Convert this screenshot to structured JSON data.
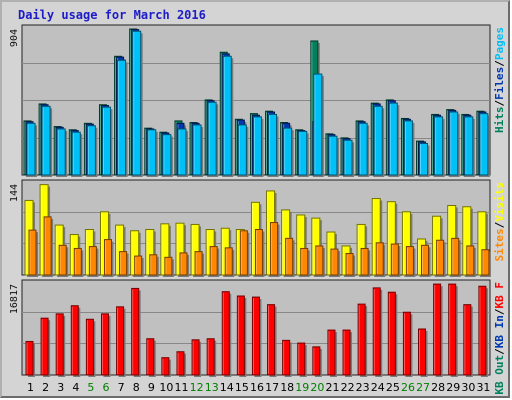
{
  "title": "Daily usage for March 2016",
  "colors": {
    "background": "#d4d4d4",
    "plot_bg": "#c0c0c0",
    "title": "#1c1cc8",
    "hits": "#00805c",
    "files": "#0038b0",
    "pages": "#00c0f8",
    "visits": "#ffff00",
    "sites": "#ff8800",
    "kb_f": "#ff0000",
    "kb_in": "#0038b0",
    "kb_out": "#00805c",
    "weekend_tick": "#008000",
    "weekday_tick": "#000080"
  },
  "chart_data": [
    {
      "type": "bar",
      "panel": "top",
      "ymax_label": "904",
      "ylim": [
        0,
        904
      ],
      "grid": true,
      "legend_parts": [
        {
          "text": "Pages",
          "color": "#00c0f8"
        },
        {
          "text": "/",
          "color": "#000000"
        },
        {
          "text": "Files",
          "color": "#0038b0"
        },
        {
          "text": "/",
          "color": "#000000"
        },
        {
          "text": "Hits",
          "color": "#00805c"
        }
      ],
      "categories": [
        "1",
        "2",
        "3",
        "4",
        "5",
        "6",
        "7",
        "8",
        "9",
        "10",
        "11",
        "12",
        "13",
        "14",
        "15",
        "16",
        "17",
        "18",
        "19",
        "20",
        "21",
        "22",
        "23",
        "24",
        "25",
        "26",
        "27",
        "28",
        "29",
        "30",
        "31"
      ],
      "series": [
        {
          "name": "Hits",
          "values": [
            335,
            440,
            300,
            280,
            320,
            435,
            735,
            904,
            290,
            265,
            335,
            325,
            465,
            760,
            345,
            380,
            395,
            325,
            280,
            830,
            255,
            230,
            335,
            445,
            465,
            350,
            210,
            375,
            405,
            375,
            395
          ]
        },
        {
          "name": "Files",
          "values": [
            330,
            435,
            295,
            275,
            315,
            430,
            730,
            900,
            285,
            260,
            320,
            320,
            460,
            750,
            340,
            370,
            390,
            320,
            275,
            330,
            250,
            225,
            330,
            440,
            460,
            345,
            205,
            370,
            400,
            370,
            390
          ]
        },
        {
          "name": "Pages",
          "values": [
            320,
            425,
            285,
            265,
            305,
            420,
            710,
            890,
            280,
            250,
            285,
            310,
            450,
            735,
            310,
            360,
            375,
            290,
            270,
            625,
            240,
            215,
            320,
            425,
            445,
            335,
            195,
            360,
            390,
            360,
            380
          ]
        }
      ]
    },
    {
      "type": "bar",
      "panel": "middle",
      "ymax_label": "144",
      "ylim": [
        0,
        144
      ],
      "grid": true,
      "legend_parts": [
        {
          "text": "Visits",
          "color": "#ffff00"
        },
        {
          "text": "/",
          "color": "#000000"
        },
        {
          "text": "Sites",
          "color": "#ff8800"
        }
      ],
      "categories": [
        "1",
        "2",
        "3",
        "4",
        "5",
        "6",
        "7",
        "8",
        "9",
        "10",
        "11",
        "12",
        "13",
        "14",
        "15",
        "16",
        "17",
        "18",
        "19",
        "20",
        "21",
        "22",
        "23",
        "24",
        "25",
        "26",
        "27",
        "28",
        "29",
        "30",
        "31"
      ],
      "series": [
        {
          "name": "Visits",
          "values": [
            118,
            143,
            79,
            64,
            72,
            100,
            79,
            70,
            72,
            81,
            82,
            80,
            72,
            74,
            72,
            115,
            133,
            103,
            95,
            90,
            68,
            46,
            80,
            121,
            116,
            100,
            57,
            93,
            110,
            108,
            100
          ]
        },
        {
          "name": "Sites",
          "values": [
            71,
            92,
            47,
            42,
            45,
            56,
            37,
            30,
            32,
            28,
            35,
            37,
            45,
            43,
            70,
            72,
            83,
            58,
            42,
            46,
            41,
            34,
            42,
            51,
            49,
            45,
            47,
            55,
            58,
            46,
            40
          ]
        }
      ]
    },
    {
      "type": "bar",
      "panel": "bottom",
      "ymax_label": "16817",
      "ylim": [
        0,
        16817
      ],
      "grid": true,
      "legend_parts": [
        {
          "text": "KB F",
          "color": "#ff0000"
        },
        {
          "text": "/",
          "color": "#000000"
        },
        {
          "text": "KB In",
          "color": "#0038b0"
        },
        {
          "text": "/",
          "color": "#000000"
        },
        {
          "text": "KB Out",
          "color": "#00805c"
        }
      ],
      "categories": [
        "1",
        "2",
        "3",
        "4",
        "5",
        "6",
        "7",
        "8",
        "9",
        "10",
        "11",
        "12",
        "13",
        "14",
        "15",
        "16",
        "17",
        "18",
        "19",
        "20",
        "21",
        "22",
        "23",
        "24",
        "25",
        "26",
        "27",
        "28",
        "29",
        "30",
        "31"
      ],
      "series": [
        {
          "name": "KB F",
          "values": [
            6200,
            10500,
            11300,
            12800,
            10300,
            11300,
            12600,
            16000,
            6700,
            3200,
            4300,
            6500,
            6700,
            15400,
            14600,
            14400,
            13000,
            6400,
            5900,
            5200,
            8300,
            8300,
            13100,
            16100,
            15300,
            11600,
            8500,
            16800,
            16800,
            13000,
            16400
          ]
        }
      ]
    }
  ],
  "x_axis": {
    "labels": [
      "1",
      "2",
      "3",
      "4",
      "5",
      "6",
      "7",
      "8",
      "9",
      "10",
      "11",
      "12",
      "13",
      "14",
      "15",
      "16",
      "17",
      "18",
      "19",
      "20",
      "21",
      "22",
      "23",
      "24",
      "25",
      "26",
      "27",
      "28",
      "29",
      "30",
      "31"
    ],
    "weekend_days": [
      5,
      6,
      12,
      13,
      19,
      20,
      26,
      27
    ]
  }
}
